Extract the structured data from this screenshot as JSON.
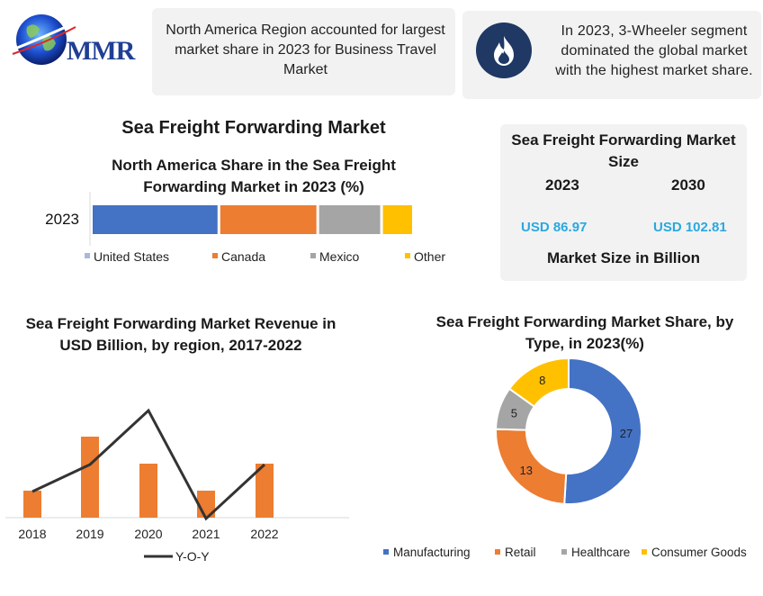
{
  "logo": {
    "text": "MMR"
  },
  "info_cards": [
    {
      "text": "North America Region accounted for largest market share in 2023 for Business Travel Market"
    },
    {
      "text": "In 2023, 3-Wheeler segment dominated the global market with the highest market share.",
      "icon": "flame-icon"
    }
  ],
  "main_title": "Sea Freight Forwarding  Market",
  "market_size": {
    "title": "Sea Freight Forwarding Market Size",
    "years": [
      "2023",
      "2030"
    ],
    "values": [
      "USD 86.97",
      "USD 102.81"
    ],
    "footer": "Market Size in Billion",
    "value_color": "#2aa8e0"
  },
  "chart_data": [
    {
      "type": "bar",
      "orientation": "horizontal-stacked",
      "title": "North America Share in the Sea Freight Forwarding Market in 2023 (%)",
      "categories": [
        "2023"
      ],
      "series": [
        {
          "name": "United States",
          "values": [
            40
          ],
          "color": "#4472c4"
        },
        {
          "name": "Canada",
          "values": [
            31
          ],
          "color": "#ed7d31"
        },
        {
          "name": "Mexico",
          "values": [
            20
          ],
          "color": "#a5a5a5"
        },
        {
          "name": "Other",
          "values": [
            10
          ],
          "color": "#ffc000"
        }
      ],
      "legend": "bottom"
    },
    {
      "type": "bar",
      "title": "Sea Freight Forwarding Market Revenue in USD Billion, by region, 2017-2022",
      "categories": [
        "2018",
        "2019",
        "2020",
        "2021",
        "2022"
      ],
      "bar_values": [
        1,
        3,
        2,
        1,
        2
      ],
      "bar_color": "#ed7d31",
      "series": [
        {
          "name": "Y-O-Y",
          "type": "line",
          "values": [
            2,
            3,
            5,
            1,
            3
          ],
          "color": "#333333"
        }
      ],
      "legend": "bottom"
    },
    {
      "type": "pie",
      "style": "donut",
      "title": "Sea Freight Forwarding Market Share, by Type, in 2023(%)",
      "labels": [
        "Manufacturing",
        "Retail",
        "Healthcare",
        "Consumer Goods"
      ],
      "values": [
        27,
        13,
        5,
        8
      ],
      "colors": [
        "#4472c4",
        "#ed7d31",
        "#a5a5a5",
        "#ffc000"
      ],
      "legend": "bottom"
    }
  ]
}
